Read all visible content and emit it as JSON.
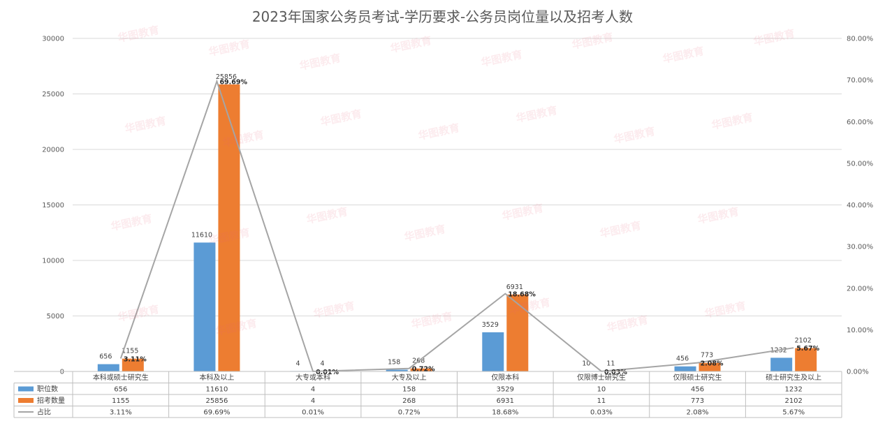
{
  "chart_data": {
    "type": "bar",
    "title": "2023年国家公务员考试-学历要求-公务员岗位量以及招考人数",
    "categories": [
      "本科或硕士研究生",
      "本科及以上",
      "大专或本科",
      "大专及以上",
      "仅限本科",
      "仅限博士研究生",
      "仅限硕士研究生",
      "硕士研究生及以上"
    ],
    "series": [
      {
        "name": "职位数",
        "type": "bar",
        "axis": "left",
        "color": "#5b9bd5",
        "values": [
          656,
          11610,
          4,
          158,
          3529,
          10,
          456,
          1232
        ]
      },
      {
        "name": "招考数量",
        "type": "bar",
        "axis": "left",
        "color": "#ed7d31",
        "values": [
          1155,
          25856,
          4,
          268,
          6931,
          11,
          773,
          2102
        ]
      },
      {
        "name": "占比",
        "type": "line",
        "axis": "right",
        "color": "#a5a5a5",
        "values": [
          3.11,
          69.69,
          0.01,
          0.72,
          18.68,
          0.03,
          2.08,
          5.67
        ],
        "labels": [
          "3.11%",
          "69.69%",
          "0.01%",
          "0.72%",
          "18.68%",
          "0.03%",
          "2.08%",
          "5.67%"
        ]
      }
    ],
    "ylim_left": [
      0,
      30000
    ],
    "yticks_left": [
      "0",
      "5000",
      "10000",
      "15000",
      "20000",
      "25000",
      "30000"
    ],
    "ylim_right": [
      0,
      80
    ],
    "yticks_right": [
      "0.00%",
      "10.00%",
      "20.00%",
      "30.00%",
      "40.00%",
      "50.00%",
      "60.00%",
      "70.00%",
      "80.00%"
    ],
    "grid": true,
    "legend": "data-table",
    "watermark": "华图教育"
  }
}
